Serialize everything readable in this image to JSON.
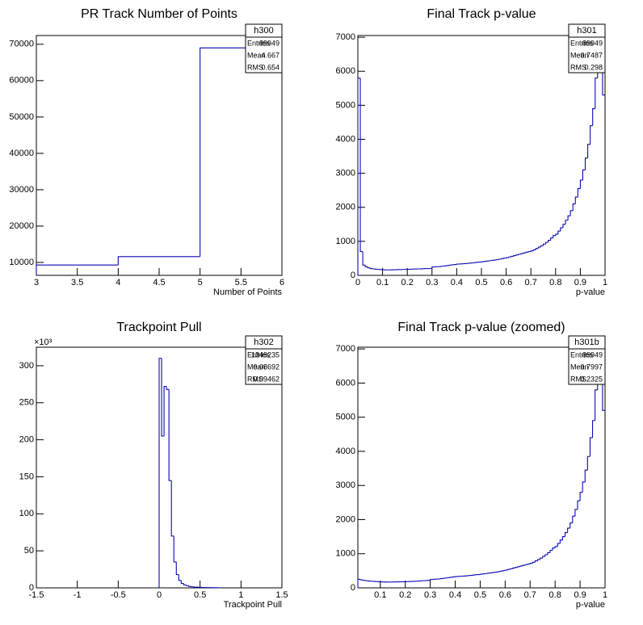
{
  "chart_data": [
    {
      "type": "histogram",
      "title": "PR Track Number of Points",
      "x_label": "Number of Points",
      "color": "#0a0ab4",
      "bins": [
        3,
        4,
        5,
        6
      ],
      "counts": [
        9300,
        11600,
        69000
      ],
      "xlim": [
        3,
        6
      ],
      "ylim": [
        6450,
        72400
      ],
      "xticks": [
        3,
        3.5,
        4,
        4.5,
        5,
        5.5,
        6
      ],
      "yticks": [
        10000,
        20000,
        30000,
        40000,
        50000,
        60000,
        70000
      ],
      "stats": {
        "name": "h300",
        "labels": [
          "Entries",
          "Mean",
          "RMS"
        ],
        "values": [
          89949,
          4.667,
          0.654
        ]
      }
    },
    {
      "type": "histogram",
      "title": "Final Track p-value",
      "x_label": "p-value",
      "color": "#0a0ab4",
      "bins": [
        0,
        0.01,
        0.02,
        0.03,
        0.04,
        0.05,
        0.06,
        0.07,
        0.08,
        0.09,
        0.1,
        0.11,
        0.12,
        0.13,
        0.14,
        0.15,
        0.16,
        0.17,
        0.18,
        0.19,
        0.2,
        0.21,
        0.22,
        0.23,
        0.24,
        0.25,
        0.26,
        0.27,
        0.28,
        0.29,
        0.3,
        0.31,
        0.32,
        0.33,
        0.34,
        0.35,
        0.36,
        0.37,
        0.38,
        0.39,
        0.4,
        0.41,
        0.42,
        0.43,
        0.44,
        0.45,
        0.46,
        0.47,
        0.48,
        0.49,
        0.5,
        0.51,
        0.52,
        0.53,
        0.54,
        0.55,
        0.56,
        0.57,
        0.58,
        0.59,
        0.6,
        0.61,
        0.62,
        0.63,
        0.64,
        0.65,
        0.66,
        0.67,
        0.68,
        0.69,
        0.7,
        0.71,
        0.72,
        0.73,
        0.74,
        0.75,
        0.76,
        0.77,
        0.78,
        0.79,
        0.8,
        0.81,
        0.82,
        0.83,
        0.84,
        0.85,
        0.86,
        0.87,
        0.88,
        0.89,
        0.9,
        0.91,
        0.92,
        0.93,
        0.94,
        0.95,
        0.96,
        0.97,
        0.98,
        0.99,
        1
      ],
      "counts": [
        5800,
        700,
        300,
        250,
        220,
        200,
        190,
        180,
        175,
        170,
        165,
        160,
        160,
        160,
        165,
        165,
        170,
        170,
        175,
        175,
        180,
        180,
        185,
        185,
        190,
        190,
        195,
        200,
        200,
        205,
        245,
        250,
        255,
        260,
        270,
        280,
        290,
        300,
        310,
        320,
        330,
        335,
        340,
        345,
        350,
        360,
        365,
        375,
        385,
        390,
        400,
        410,
        420,
        430,
        440,
        450,
        460,
        475,
        490,
        505,
        520,
        540,
        560,
        580,
        600,
        620,
        640,
        660,
        680,
        700,
        720,
        750,
        790,
        830,
        870,
        920,
        970,
        1030,
        1100,
        1170,
        1210,
        1300,
        1400,
        1500,
        1620,
        1750,
        1900,
        2100,
        2300,
        2550,
        2800,
        3100,
        3450,
        3850,
        4400,
        4900,
        5800,
        6500,
        7000,
        5300
      ],
      "xlim": [
        0,
        1
      ],
      "ylim": [
        0,
        7050
      ],
      "xticks": [
        0,
        0.1,
        0.2,
        0.3,
        0.4,
        0.5,
        0.6,
        0.7,
        0.8,
        0.9,
        1
      ],
      "yticks": [
        0,
        1000,
        2000,
        3000,
        4000,
        5000,
        6000,
        7000
      ],
      "stats": {
        "name": "h301",
        "labels": [
          "Entries",
          "Mean",
          "RMS"
        ],
        "values": [
          89949,
          0.7487,
          0.298
        ]
      }
    },
    {
      "type": "histogram",
      "title": "Trackpoint Pull",
      "x_label": "Trackpoint Pull",
      "y_multiplier": "×10³",
      "color": "#0a0ab4",
      "bins": [
        0,
        0.03,
        0.06,
        0.09,
        0.12,
        0.15,
        0.18,
        0.21,
        0.24,
        0.27,
        0.3,
        0.33,
        0.36,
        0.39,
        0.42,
        0.45,
        0.48,
        0.51,
        0.54,
        0.57,
        0.6,
        0.63,
        0.66,
        0.69,
        0.72,
        0.75
      ],
      "counts": [
        310,
        205,
        272,
        268,
        145,
        70,
        35,
        18,
        10,
        6,
        4,
        3,
        2,
        1.5,
        1,
        1,
        0.8,
        0.6,
        0.5,
        0.4,
        0.3,
        0.3,
        0.2,
        0.2,
        0.1
      ],
      "xlim": [
        -1.5,
        1.5
      ],
      "ylim": [
        0,
        325
      ],
      "xticks": [
        -1.5,
        -1,
        -0.5,
        0,
        0.5,
        1,
        1.5
      ],
      "yticks": [
        0,
        50,
        100,
        150,
        200,
        250,
        300
      ],
      "stats": {
        "name": "h302",
        "labels": [
          "Entries",
          "Mean",
          "RMS"
        ],
        "values": [
          1349235,
          0.08692,
          0.09462
        ]
      }
    },
    {
      "type": "histogram",
      "title": "Final Track p-value (zoomed)",
      "x_label": "p-value",
      "color": "#0a0ab4",
      "bins": [
        0.01,
        0.02,
        0.03,
        0.04,
        0.05,
        0.06,
        0.07,
        0.08,
        0.09,
        0.1,
        0.11,
        0.12,
        0.13,
        0.14,
        0.15,
        0.16,
        0.17,
        0.18,
        0.19,
        0.2,
        0.21,
        0.22,
        0.23,
        0.24,
        0.25,
        0.26,
        0.27,
        0.28,
        0.29,
        0.3,
        0.31,
        0.32,
        0.33,
        0.34,
        0.35,
        0.36,
        0.37,
        0.38,
        0.39,
        0.4,
        0.41,
        0.42,
        0.43,
        0.44,
        0.45,
        0.46,
        0.47,
        0.48,
        0.49,
        0.5,
        0.51,
        0.52,
        0.53,
        0.54,
        0.55,
        0.56,
        0.57,
        0.58,
        0.59,
        0.6,
        0.61,
        0.62,
        0.63,
        0.64,
        0.65,
        0.66,
        0.67,
        0.68,
        0.69,
        0.7,
        0.71,
        0.72,
        0.73,
        0.74,
        0.75,
        0.76,
        0.77,
        0.78,
        0.79,
        0.8,
        0.81,
        0.82,
        0.83,
        0.84,
        0.85,
        0.86,
        0.87,
        0.88,
        0.89,
        0.9,
        0.91,
        0.92,
        0.93,
        0.94,
        0.95,
        0.96,
        0.97,
        0.98,
        0.99,
        1
      ],
      "counts": [
        250,
        235,
        220,
        210,
        200,
        195,
        190,
        185,
        180,
        175,
        172,
        170,
        170,
        170,
        172,
        174,
        176,
        178,
        180,
        182,
        185,
        188,
        190,
        195,
        200,
        205,
        210,
        215,
        220,
        245,
        250,
        255,
        260,
        270,
        280,
        290,
        300,
        310,
        320,
        330,
        335,
        340,
        345,
        350,
        360,
        365,
        375,
        385,
        390,
        400,
        410,
        420,
        430,
        440,
        450,
        460,
        475,
        490,
        505,
        520,
        540,
        560,
        580,
        600,
        620,
        640,
        660,
        680,
        700,
        720,
        750,
        790,
        830,
        870,
        920,
        970,
        1030,
        1100,
        1170,
        1210,
        1300,
        1400,
        1500,
        1620,
        1750,
        1900,
        2100,
        2300,
        2550,
        2800,
        3100,
        3450,
        3850,
        4400,
        4900,
        5800,
        6500,
        7000,
        5200
      ],
      "xlim": [
        0.01,
        1
      ],
      "ylim": [
        0,
        7050
      ],
      "xticks": [
        0.1,
        0.2,
        0.3,
        0.4,
        0.5,
        0.6,
        0.7,
        0.8,
        0.9,
        1
      ],
      "yticks": [
        0,
        1000,
        2000,
        3000,
        4000,
        5000,
        6000,
        7000
      ],
      "stats": {
        "name": "h301b",
        "labels": [
          "Entries",
          "Mean",
          "RMS"
        ],
        "values": [
          89949,
          0.7997,
          0.2325
        ]
      }
    }
  ]
}
